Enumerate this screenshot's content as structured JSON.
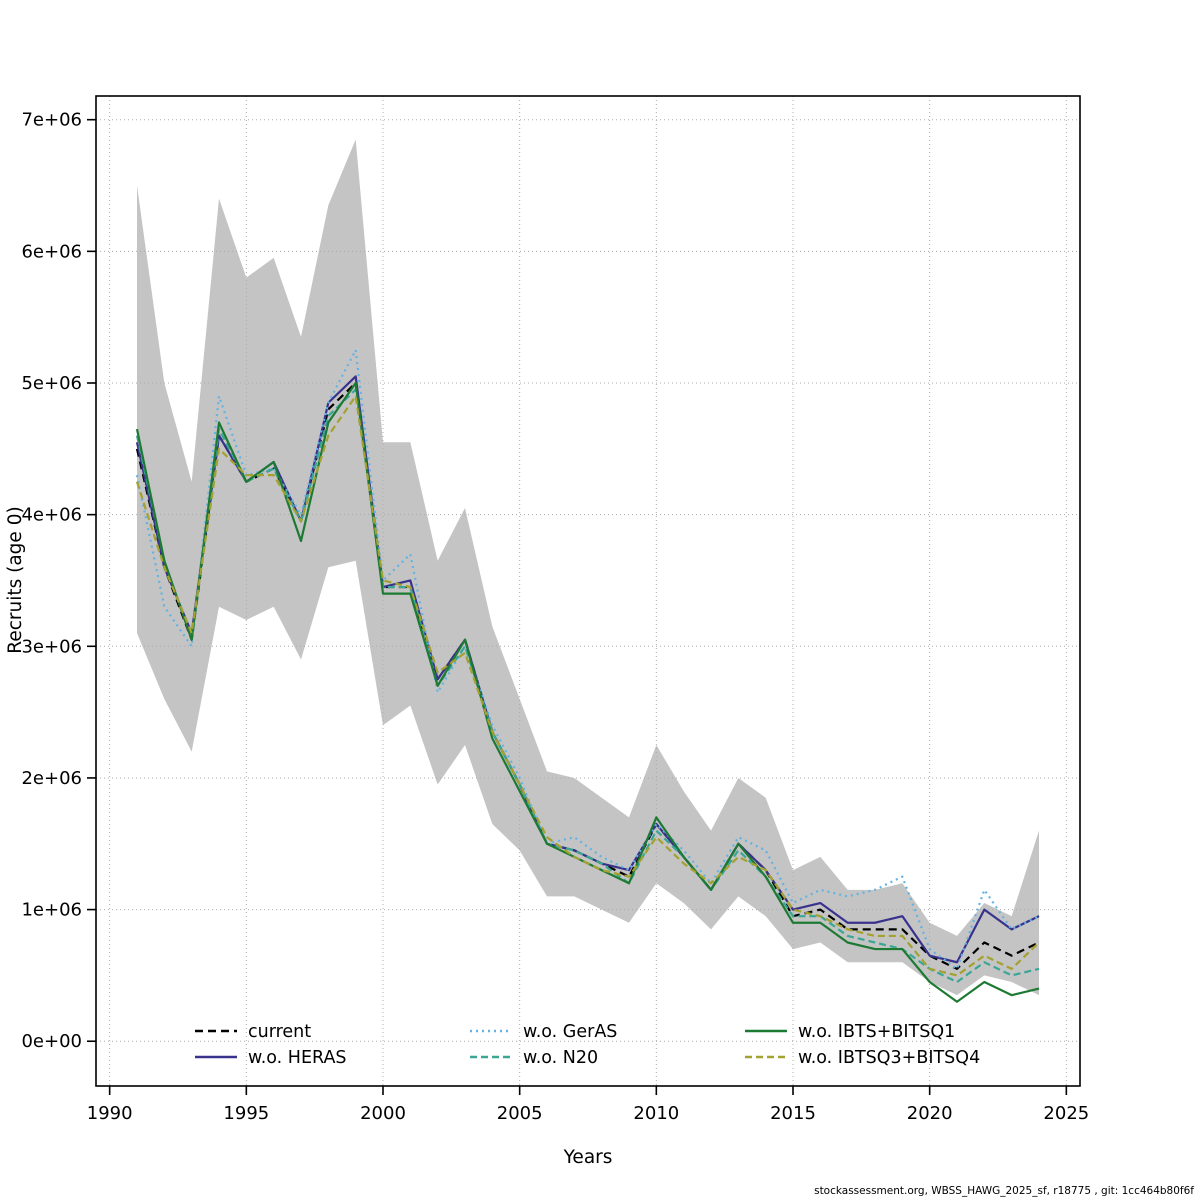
{
  "page": {
    "footer": "stockassessment.org, WBSS_HAWG_2025_sf, r18775 , git: 1cc464b80f6f"
  },
  "chart_data": {
    "type": "line",
    "title": "",
    "xlabel": "Years",
    "ylabel": "Recruits (age 0)",
    "grid": "dotted",
    "legend_position": "bottom-inside",
    "xlim": [
      1989.5,
      2025.5
    ],
    "ylim": [
      -340000,
      7180000
    ],
    "xticks": [
      1990,
      1995,
      2000,
      2005,
      2010,
      2015,
      2020,
      2025
    ],
    "yticks": [
      {
        "value": 0,
        "label": "0e+00"
      },
      {
        "value": 1000000,
        "label": "1e+06"
      },
      {
        "value": 2000000,
        "label": "2e+06"
      },
      {
        "value": 3000000,
        "label": "3e+06"
      },
      {
        "value": 4000000,
        "label": "4e+06"
      },
      {
        "value": 5000000,
        "label": "5e+06"
      },
      {
        "value": 6000000,
        "label": "6e+06"
      },
      {
        "value": 7000000,
        "label": "7e+06"
      }
    ],
    "x": [
      1991,
      1992,
      1993,
      1994,
      1995,
      1996,
      1997,
      1998,
      1999,
      2000,
      2001,
      2002,
      2003,
      2004,
      2005,
      2006,
      2007,
      2008,
      2009,
      2010,
      2011,
      2012,
      2013,
      2014,
      2015,
      2016,
      2017,
      2018,
      2019,
      2020,
      2021,
      2022,
      2023,
      2024
    ],
    "band": {
      "color": "#c4c4c4",
      "upper": [
        6500000,
        5000000,
        4250000,
        6400000,
        5800000,
        5950000,
        5350000,
        6350000,
        6850000,
        4550000,
        4550000,
        3650000,
        4050000,
        3150000,
        2600000,
        2050000,
        2000000,
        1850000,
        1700000,
        2250000,
        1900000,
        1600000,
        2000000,
        1850000,
        1300000,
        1400000,
        1150000,
        1150000,
        1200000,
        900000,
        800000,
        1050000,
        950000,
        1600000
      ],
      "lower": [
        3100000,
        2600000,
        2200000,
        3300000,
        3200000,
        3300000,
        2900000,
        3600000,
        3650000,
        2400000,
        2550000,
        1950000,
        2250000,
        1650000,
        1450000,
        1100000,
        1100000,
        1000000,
        900000,
        1200000,
        1050000,
        850000,
        1100000,
        950000,
        700000,
        750000,
        600000,
        600000,
        600000,
        450000,
        350000,
        500000,
        450000,
        350000
      ]
    },
    "series": [
      {
        "name": "current",
        "color": "#000000",
        "dash": "8,5",
        "values": [
          4500000,
          3600000,
          3050000,
          4600000,
          4250000,
          4350000,
          3950000,
          4800000,
          5000000,
          3450000,
          3450000,
          2750000,
          3050000,
          2350000,
          1950000,
          1500000,
          1450000,
          1350000,
          1250000,
          1650000,
          1400000,
          1150000,
          1500000,
          1300000,
          950000,
          1000000,
          850000,
          850000,
          850000,
          650000,
          550000,
          750000,
          650000,
          750000
        ]
      },
      {
        "name": "w.o. HERAS",
        "color": "#39328c",
        "dash": "",
        "values": [
          4550000,
          3600000,
          3100000,
          4600000,
          4250000,
          4400000,
          3950000,
          4850000,
          5050000,
          3450000,
          3500000,
          2750000,
          3050000,
          2350000,
          1950000,
          1500000,
          1450000,
          1350000,
          1300000,
          1650000,
          1400000,
          1150000,
          1500000,
          1300000,
          1000000,
          1050000,
          900000,
          900000,
          950000,
          650000,
          600000,
          1000000,
          850000,
          950000
        ]
      },
      {
        "name": "w.o. GerAS",
        "color": "#62b2e4",
        "dash": "2,4",
        "values": [
          4300000,
          3300000,
          3000000,
          4900000,
          4300000,
          4350000,
          4000000,
          4850000,
          5250000,
          3500000,
          3700000,
          2650000,
          3000000,
          2400000,
          2000000,
          1500000,
          1550000,
          1400000,
          1300000,
          1650000,
          1450000,
          1200000,
          1550000,
          1450000,
          1050000,
          1150000,
          1100000,
          1150000,
          1250000,
          700000,
          550000,
          1150000,
          850000,
          950000
        ]
      },
      {
        "name": "w.o. N20",
        "color": "#3aa795",
        "dash": "7,4",
        "values": [
          4600000,
          3650000,
          3050000,
          4650000,
          4250000,
          4350000,
          3950000,
          4750000,
          4950000,
          3450000,
          3450000,
          2700000,
          3000000,
          2350000,
          1950000,
          1500000,
          1450000,
          1350000,
          1200000,
          1600000,
          1400000,
          1150000,
          1450000,
          1250000,
          950000,
          950000,
          800000,
          750000,
          700000,
          550000,
          450000,
          600000,
          500000,
          550000
        ]
      },
      {
        "name": "w.o. IBTS+BITSQ1",
        "color": "#1d7a33",
        "dash": "",
        "values": [
          4650000,
          3650000,
          3050000,
          4700000,
          4250000,
          4400000,
          3800000,
          4700000,
          5000000,
          3400000,
          3400000,
          2700000,
          3050000,
          2300000,
          1900000,
          1500000,
          1400000,
          1300000,
          1200000,
          1700000,
          1400000,
          1150000,
          1500000,
          1250000,
          900000,
          900000,
          750000,
          700000,
          700000,
          450000,
          300000,
          450000,
          350000,
          400000
        ]
      },
      {
        "name": "w.o. IBTSQ3+BITSQ4",
        "color": "#a3a12f",
        "dash": "7,4",
        "values": [
          4250000,
          3600000,
          3100000,
          4500000,
          4300000,
          4300000,
          3950000,
          4600000,
          4900000,
          3500000,
          3450000,
          2800000,
          2950000,
          2350000,
          1950000,
          1550000,
          1400000,
          1300000,
          1250000,
          1550000,
          1350000,
          1200000,
          1400000,
          1300000,
          1000000,
          950000,
          850000,
          800000,
          800000,
          550000,
          500000,
          650000,
          550000,
          750000
        ]
      }
    ]
  }
}
